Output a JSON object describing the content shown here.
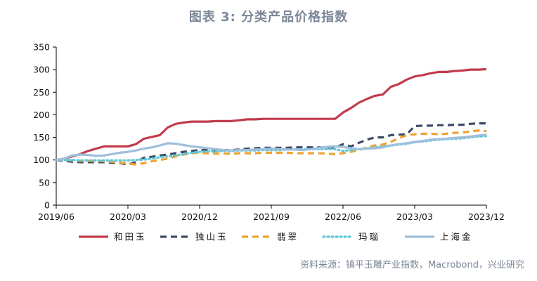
{
  "title": "图表 3:  分类产品价格指数",
  "source": "资料来源：镇平玉雕产业指数，Macrobond，兴业研究",
  "chart_data": {
    "type": "line",
    "title": "图表 3:  分类产品价格指数",
    "xlabel": "",
    "ylabel": "",
    "ylim": [
      0,
      350
    ],
    "yticks": [
      0,
      50,
      100,
      150,
      200,
      250,
      300,
      350
    ],
    "xlim": [
      "2019-06",
      "2023-12"
    ],
    "xticks": [
      "2019/06",
      "2020/03",
      "2020/12",
      "2021/09",
      "2022/06",
      "2023/03",
      "2023/12"
    ],
    "grid": false,
    "legend_position": "bottom",
    "x": [
      "2019-06",
      "2019-07",
      "2019-08",
      "2019-09",
      "2019-10",
      "2019-11",
      "2019-12",
      "2020-01",
      "2020-02",
      "2020-03",
      "2020-04",
      "2020-05",
      "2020-06",
      "2020-07",
      "2020-08",
      "2020-09",
      "2020-10",
      "2020-11",
      "2020-12",
      "2021-01",
      "2021-02",
      "2021-03",
      "2021-04",
      "2021-05",
      "2021-06",
      "2021-07",
      "2021-08",
      "2021-09",
      "2021-10",
      "2021-11",
      "2021-12",
      "2022-01",
      "2022-02",
      "2022-03",
      "2022-04",
      "2022-05",
      "2022-06",
      "2022-07",
      "2022-08",
      "2022-09",
      "2022-10",
      "2022-11",
      "2022-12",
      "2023-01",
      "2023-02",
      "2023-03",
      "2023-04",
      "2023-05",
      "2023-06",
      "2023-07",
      "2023-08",
      "2023-09",
      "2023-10",
      "2023-11",
      "2023-12"
    ],
    "series": [
      {
        "name": "和田玉",
        "color": "#c23b4b",
        "style": "solid",
        "values": [
          100,
          103,
          108,
          113,
          120,
          125,
          130,
          130,
          130,
          130,
          135,
          147,
          151,
          155,
          172,
          180,
          183,
          185,
          185,
          185,
          186,
          186,
          186,
          188,
          190,
          190,
          191,
          191,
          191,
          191,
          191,
          191,
          191,
          191,
          191,
          191,
          205,
          215,
          227,
          235,
          242,
          245,
          262,
          268,
          278,
          285,
          288,
          292,
          295,
          295,
          297,
          298,
          300,
          300,
          301
        ]
      },
      {
        "name": "独山玉",
        "color": "#3d4a66",
        "style": "dashed",
        "values": [
          100,
          98,
          96,
          95,
          95,
          95,
          95,
          94,
          93,
          90,
          95,
          105,
          107,
          110,
          112,
          115,
          118,
          120,
          122,
          122,
          120,
          122,
          122,
          123,
          125,
          126,
          127,
          127,
          127,
          127,
          128,
          128,
          128,
          128,
          127,
          127,
          135,
          130,
          138,
          145,
          150,
          150,
          155,
          156,
          157,
          175,
          176,
          176,
          177,
          177,
          178,
          178,
          180,
          181,
          181
        ]
      },
      {
        "name": "翡翠",
        "color": "#efa232",
        "style": "dashed",
        "values": [
          100,
          100,
          99,
          98,
          98,
          98,
          97,
          96,
          94,
          92,
          90,
          93,
          97,
          100,
          103,
          108,
          112,
          115,
          116,
          115,
          114,
          114,
          114,
          115,
          115,
          115,
          116,
          116,
          116,
          116,
          115,
          115,
          115,
          115,
          114,
          113,
          115,
          118,
          122,
          128,
          132,
          134,
          140,
          148,
          155,
          157,
          158,
          158,
          157,
          158,
          160,
          161,
          163,
          165,
          164
        ]
      },
      {
        "name": "玛瑙",
        "color": "#5fc8d6",
        "style": "dotted",
        "values": [
          100,
          100,
          100,
          99,
          99,
          99,
          99,
          99,
          99,
          99,
          100,
          101,
          103,
          106,
          108,
          110,
          113,
          116,
          118,
          119,
          119,
          120,
          120,
          121,
          121,
          121,
          122,
          122,
          122,
          123,
          123,
          124,
          124,
          124,
          124,
          124,
          120,
          122,
          124,
          126,
          128,
          130,
          132,
          134,
          136,
          139,
          141,
          143,
          145,
          146,
          147,
          148,
          150,
          152,
          153
        ]
      },
      {
        "name": "上海金",
        "color": "#9ebfdc",
        "style": "solid",
        "values": [
          100,
          103,
          110,
          112,
          111,
          109,
          110,
          113,
          116,
          118,
          121,
          125,
          128,
          132,
          137,
          136,
          133,
          130,
          128,
          126,
          124,
          122,
          121,
          122,
          122,
          123,
          124,
          125,
          124,
          123,
          123,
          122,
          124,
          127,
          129,
          130,
          129,
          126,
          124,
          125,
          126,
          128,
          132,
          135,
          137,
          140,
          142,
          145,
          146,
          147,
          149,
          150,
          152,
          154,
          156
        ]
      }
    ]
  }
}
